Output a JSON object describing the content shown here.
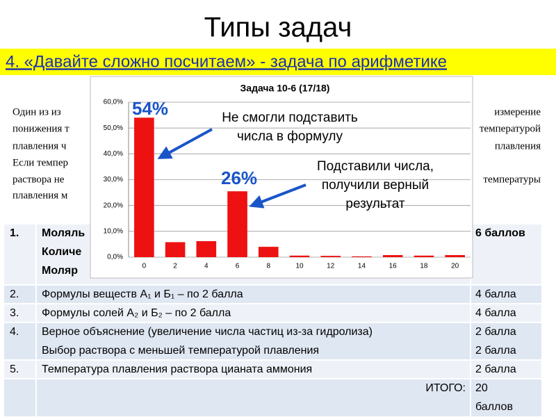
{
  "slide": {
    "title": "Типы задач",
    "subtitle": "4. «Давайте сложно посчитаем» - задача по арифметике"
  },
  "paragraph": {
    "left": [
      "Один из из",
      "понижения т",
      "плавления ч",
      "Если темпер",
      "раствора не",
      "плавления м"
    ],
    "right": [
      "измерение",
      "температурой",
      "плавления",
      "",
      "температуры"
    ]
  },
  "table": {
    "rows": [
      {
        "num": "1.",
        "lines": [
          "Моляль",
          "Количе",
          "Моляр"
        ],
        "points": [
          "6 баллов"
        ],
        "bold": true
      },
      {
        "num": "2.",
        "lines": [
          "Формулы веществ А₁ и Б₁ – по 2 балла"
        ],
        "points": [
          "4 балла"
        ]
      },
      {
        "num": "3.",
        "lines": [
          "Формулы солей А₂ и Б₂ – по 2 балла"
        ],
        "points": [
          "4 балла"
        ]
      },
      {
        "num": "4.",
        "lines": [
          "Верное объяснение (увеличение числа частиц из-за гидролиза)",
          "Выбор раствора с меньшей температурой плавления"
        ],
        "points": [
          "2 балла",
          "2 балла"
        ]
      },
      {
        "num": "5.",
        "lines": [
          "Температура плавления раствора цианата аммония"
        ],
        "points": [
          "2 балла"
        ]
      }
    ],
    "total": {
      "label": "ИТОГО:",
      "points": [
        "20",
        "баллов"
      ]
    }
  },
  "chart_data": {
    "type": "bar",
    "title": "Задача 10-6 (17/18)",
    "categories": [
      "0",
      "2",
      "4",
      "6",
      "8",
      "10",
      "12",
      "14",
      "16",
      "18",
      "20"
    ],
    "values": [
      54,
      5.8,
      6.2,
      25.5,
      4,
      0.6,
      0.5,
      0.3,
      0.8,
      0.6,
      0.8
    ],
    "color": "#ee1111",
    "ylim": [
      0,
      60
    ],
    "yticks": [
      {
        "value": 0,
        "label": "0,0%"
      },
      {
        "value": 10,
        "label": "10,0%"
      },
      {
        "value": 20,
        "label": "20,0%"
      },
      {
        "value": 30,
        "label": "30,0%"
      },
      {
        "value": 40,
        "label": "40,0%"
      },
      {
        "value": 50,
        "label": "50,0%"
      },
      {
        "value": 60,
        "label": "60,0%"
      }
    ],
    "grid": true,
    "annotations": [
      {
        "text": "54%"
      },
      {
        "text": "26%"
      },
      {
        "lines": [
          "Не смогли подставить",
          "числа в формулу"
        ]
      },
      {
        "lines": [
          "Подставили числа,",
          "получили верный",
          "результат"
        ]
      }
    ]
  }
}
